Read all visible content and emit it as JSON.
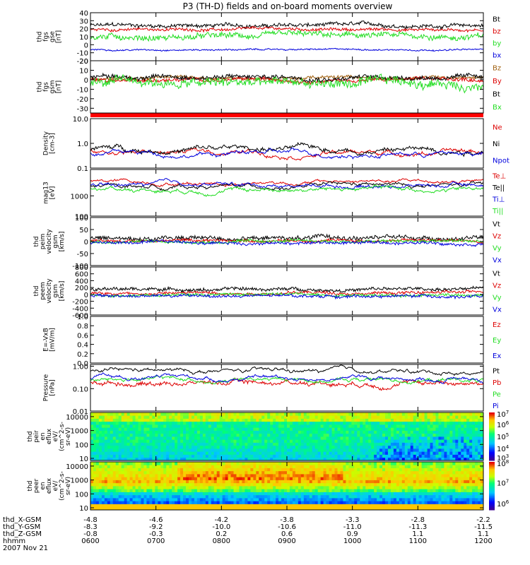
{
  "title": "P3 (TH-D) fields and on-board moments overview",
  "colors": {
    "black": "#000000",
    "red": "#dd0000",
    "green": "#22dd22",
    "blue": "#0000dd",
    "brown": "#a06010",
    "magenta_red": "#ff0000"
  },
  "chart_data": [
    {
      "type": "line",
      "id": "fgs_gse",
      "ylabel_lines": [
        "thd",
        "fgs",
        "gse",
        "[nT]"
      ],
      "ylim": [
        -20,
        40
      ],
      "yticks": [
        "40",
        "30",
        "20",
        "10",
        "0",
        "-10",
        "-20"
      ],
      "ytick_values": [
        40,
        30,
        20,
        10,
        0,
        -10,
        -20
      ],
      "series": [
        {
          "name": "Bt",
          "color": "#000000",
          "level": 24,
          "noise": 4
        },
        {
          "name": "bz",
          "color": "#dd0000",
          "level": 19,
          "noise": 3
        },
        {
          "name": "by",
          "color": "#22dd22",
          "level": 10,
          "noise": 6
        },
        {
          "name": "bx",
          "color": "#0000dd",
          "level": -6,
          "noise": 1.5
        }
      ]
    },
    {
      "type": "line",
      "id": "fgs_gsm",
      "ylabel_lines": [
        "thd",
        "fgs",
        "gsm",
        "[nT]"
      ],
      "ylim": [
        -35,
        20
      ],
      "yticks": [
        "20",
        "10",
        "0",
        "-10",
        "-20",
        "-30"
      ],
      "ytick_values": [
        20,
        10,
        0,
        -10,
        -20,
        -30
      ],
      "series": [
        {
          "name": "Bz",
          "color": "#a06010",
          "level": 2,
          "noise": 3
        },
        {
          "name": "By",
          "color": "#dd0000",
          "level": 0,
          "noise": 3
        },
        {
          "name": "Bt",
          "color": "#000000",
          "level": 3,
          "noise": 4
        },
        {
          "name": "Bx",
          "color": "#22dd22",
          "level": -4,
          "noise": 8
        }
      ]
    },
    {
      "type": "line",
      "id": "density",
      "log": true,
      "ylabel_lines": [
        "Density",
        "[cm-3]"
      ],
      "ylim": [
        0.1,
        10
      ],
      "yticks": [
        "10.0",
        "1.0",
        "0.1"
      ],
      "ytick_values": [
        10,
        1,
        0.1
      ],
      "series": [
        {
          "name": "Ne",
          "color": "#dd0000",
          "level": 0.45,
          "noise": 0.1
        },
        {
          "name": "Ni",
          "color": "#000000",
          "level": 0.6,
          "noise": 0.25
        },
        {
          "name": "Npot",
          "color": "#0000dd",
          "level": 0.4,
          "noise": 0.08
        }
      ]
    },
    {
      "type": "line",
      "id": "temperature",
      "log": true,
      "ylabel_lines": [
        "mag13",
        "[eV]"
      ],
      "ylim": [
        100,
        20000
      ],
      "yticks": [
        "1000",
        "100"
      ],
      "ytick_values": [
        1000,
        100
      ],
      "series": [
        {
          "name": "Te⊥",
          "color": "#dd0000",
          "level": 5000,
          "noise": 800
        },
        {
          "name": "Te||",
          "color": "#000000",
          "level": 3000,
          "noise": 700
        },
        {
          "name": "Ti⊥",
          "color": "#0000dd",
          "level": 3500,
          "noise": 900
        },
        {
          "name": "Ti||",
          "color": "#22dd22",
          "level": 2200,
          "noise": 700
        }
      ]
    },
    {
      "type": "line",
      "id": "peim_velocity",
      "ylabel_lines": [
        "thd",
        "peim",
        "velocity",
        "gsm",
        "[km/s]"
      ],
      "ylim": [
        -100,
        100
      ],
      "yticks": [
        "100",
        "50",
        "0",
        "-50",
        "-100"
      ],
      "ytick_values": [
        100,
        50,
        0,
        -50,
        -100
      ],
      "series": [
        {
          "name": "Vt",
          "color": "#000000",
          "level": 15,
          "noise": 15
        },
        {
          "name": "Vz",
          "color": "#dd0000",
          "level": 5,
          "noise": 10
        },
        {
          "name": "Vy",
          "color": "#22dd22",
          "level": 0,
          "noise": 10
        },
        {
          "name": "Vx",
          "color": "#0000dd",
          "level": -5,
          "noise": 10
        }
      ]
    },
    {
      "type": "line",
      "id": "peem_velocity",
      "ylabel_lines": [
        "thd",
        "peem",
        "velocity",
        "gsm",
        "[km/s]"
      ],
      "ylim": [
        -600,
        800
      ],
      "yticks": [
        "800",
        "600",
        "400",
        "200",
        "0",
        "-200",
        "-400",
        "-600"
      ],
      "ytick_values": [
        800,
        600,
        400,
        200,
        0,
        -200,
        -400,
        -600
      ],
      "series": [
        {
          "name": "Vt",
          "color": "#000000",
          "level": 150,
          "noise": 80
        },
        {
          "name": "Vz",
          "color": "#dd0000",
          "level": 50,
          "noise": 70
        },
        {
          "name": "Vy",
          "color": "#22dd22",
          "level": 0,
          "noise": 70
        },
        {
          "name": "Vx",
          "color": "#0000dd",
          "level": -50,
          "noise": 70
        }
      ]
    },
    {
      "type": "line",
      "id": "efield",
      "ylabel_lines": [
        "E=-VxB",
        "[mV/m]"
      ],
      "ylim": [
        0,
        1
      ],
      "yticks": [
        "1.0",
        "0.8",
        "0.6",
        "0.4",
        "0.2",
        "0.0"
      ],
      "ytick_values": [
        1,
        0.8,
        0.6,
        0.4,
        0.2,
        0
      ],
      "series": [
        {
          "name": "Ez",
          "color": "#dd0000"
        },
        {
          "name": "Ey",
          "color": "#22dd22"
        },
        {
          "name": "Ex",
          "color": "#0000dd"
        }
      ]
    },
    {
      "type": "line",
      "id": "pressure",
      "log": true,
      "ylabel_lines": [
        "Pressure",
        "[nPa]"
      ],
      "ylim": [
        0.01,
        1.2
      ],
      "yticks": [
        "1.00",
        "0.10",
        "0.01"
      ],
      "ytick_values": [
        1,
        0.1,
        0.01
      ],
      "series": [
        {
          "name": "Pt",
          "color": "#000000",
          "level": 0.55,
          "noise": 0.1
        },
        {
          "name": "Pb",
          "color": "#dd0000",
          "level": 0.2,
          "noise": 0.08
        },
        {
          "name": "Pe",
          "color": "#22dd22",
          "level": 0.25,
          "noise": 0.05
        },
        {
          "name": "Pi",
          "color": "#0000dd",
          "level": 0.3,
          "noise": 0.05
        }
      ]
    },
    {
      "type": "heatmap",
      "id": "peir_eflux",
      "ylabel_lines": [
        "thd",
        "peir",
        "en",
        "eflux",
        "eV/",
        "(cm^2-s-",
        "sr-eV)"
      ],
      "ylim": [
        7,
        20000
      ],
      "yticks": [
        "10000",
        "1000",
        "100",
        "10"
      ],
      "ytick_values": [
        10000,
        1000,
        100,
        10
      ],
      "colorbar_ticks": [
        "10^7",
        "10^6",
        "10^5",
        "10^4",
        "10^3"
      ],
      "colorbar_values": [
        7,
        6,
        5,
        4,
        3
      ]
    },
    {
      "type": "heatmap",
      "id": "peer_eflux",
      "ylabel_lines": [
        "thd",
        "peer",
        "en",
        "eflux",
        "eV/",
        "(cm^2-s-",
        "sr-eV)"
      ],
      "ylim": [
        7,
        20000
      ],
      "yticks": [
        "10000",
        "1000",
        "100",
        "10"
      ],
      "ytick_values": [
        10000,
        1000,
        100,
        10
      ],
      "colorbar_ticks": [
        "10^8",
        "10^7",
        "10^6"
      ],
      "colorbar_values": [
        8,
        7,
        6
      ]
    }
  ],
  "xaxis": {
    "row_labels": [
      "thd_X-GSM",
      "thd_Y-GSM",
      "thd_Z-GSM",
      "hhmm",
      "2007 Nov 21"
    ],
    "columns": [
      {
        "x": "-4.8",
        "y": "-8.3",
        "z": "-0.8",
        "t": "0600"
      },
      {
        "x": "-4.6",
        "y": "-9.2",
        "z": "-0.3",
        "t": "0700"
      },
      {
        "x": "-4.2",
        "y": "-10.0",
        "z": "0.2",
        "t": "0800"
      },
      {
        "x": "-3.8",
        "y": "-10.6",
        "z": "0.6",
        "t": "0900"
      },
      {
        "x": "-3.3",
        "y": "-11.0",
        "z": "0.9",
        "t": "1000"
      },
      {
        "x": "-2.8",
        "y": "-11.3",
        "z": "1.1",
        "t": "1100"
      },
      {
        "x": "-2.2",
        "y": "-11.5",
        "z": "1.1",
        "t": "1200"
      }
    ]
  }
}
